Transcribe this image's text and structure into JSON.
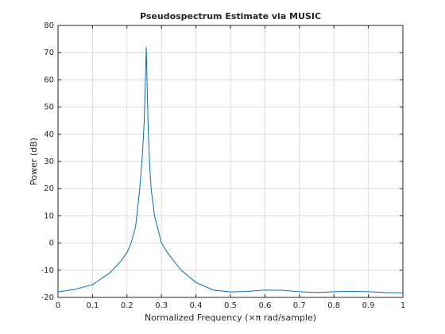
{
  "chart_data": {
    "type": "line",
    "title": "Pseudospectrum Estimate via MUSIC",
    "xlabel": "Normalized Frequency  (×π rad/sample)",
    "ylabel": "Power (dB)",
    "x": [
      0,
      0.05,
      0.1,
      0.15,
      0.18,
      0.2,
      0.212,
      0.225,
      0.237,
      0.245,
      0.25,
      0.253,
      0.256,
      0.259,
      0.262,
      0.266,
      0.27,
      0.28,
      0.29,
      0.3,
      0.32,
      0.357,
      0.4,
      0.45,
      0.5,
      0.55,
      0.6,
      0.65,
      0.7,
      0.75,
      0.8,
      0.85,
      0.9,
      0.95,
      1
    ],
    "values": [
      -18,
      -17,
      -15.3,
      -11,
      -7,
      -3.5,
      0,
      6,
      20,
      33,
      45,
      58,
      72,
      55,
      40,
      28,
      20,
      10,
      5,
      0,
      -4,
      -10,
      -14.5,
      -17.3,
      -18,
      -17.8,
      -17.3,
      -17.4,
      -17.9,
      -18.2,
      -17.9,
      -17.8,
      -17.9,
      -18.2,
      -18.3
    ],
    "color": "#0072bd",
    "xlim": [
      0,
      1
    ],
    "xticks": [
      0,
      0.1,
      0.2,
      0.3,
      0.4,
      0.5,
      0.6,
      0.7,
      0.8,
      0.9,
      1
    ],
    "ylim": [
      -20,
      80
    ],
    "yticks": [
      -20,
      -10,
      0,
      10,
      20,
      30,
      40,
      50,
      60,
      70,
      80
    ],
    "grid": true
  }
}
